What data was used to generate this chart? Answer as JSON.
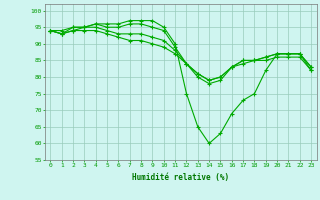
{
  "title": "",
  "xlabel": "Humidité relative (%)",
  "ylabel": "",
  "bg_color": "#cff5f0",
  "grid_color": "#99ccbb",
  "line_color": "#00aa00",
  "marker_color": "#00aa00",
  "xlim": [
    -0.5,
    23.5
  ],
  "ylim": [
    55,
    102
  ],
  "yticks": [
    55,
    60,
    65,
    70,
    75,
    80,
    85,
    90,
    95,
    100
  ],
  "xticks": [
    0,
    1,
    2,
    3,
    4,
    5,
    6,
    7,
    8,
    9,
    10,
    11,
    12,
    13,
    14,
    15,
    16,
    17,
    18,
    19,
    20,
    21,
    22,
    23
  ],
  "series": [
    [
      94,
      94,
      95,
      95,
      96,
      96,
      96,
      97,
      97,
      97,
      95,
      90,
      75,
      65,
      60,
      63,
      69,
      73,
      75,
      82,
      87,
      87,
      87,
      82
    ],
    [
      94,
      93,
      95,
      95,
      96,
      95,
      95,
      96,
      96,
      95,
      94,
      89,
      84,
      80,
      78,
      79,
      83,
      85,
      85,
      86,
      87,
      87,
      87,
      83
    ],
    [
      94,
      93,
      94,
      95,
      95,
      94,
      93,
      93,
      93,
      92,
      91,
      88,
      84,
      81,
      79,
      80,
      83,
      85,
      85,
      86,
      87,
      87,
      87,
      83
    ],
    [
      94,
      93,
      94,
      94,
      94,
      93,
      92,
      91,
      91,
      90,
      89,
      87,
      84,
      81,
      79,
      80,
      83,
      84,
      85,
      85,
      86,
      86,
      86,
      82
    ]
  ]
}
